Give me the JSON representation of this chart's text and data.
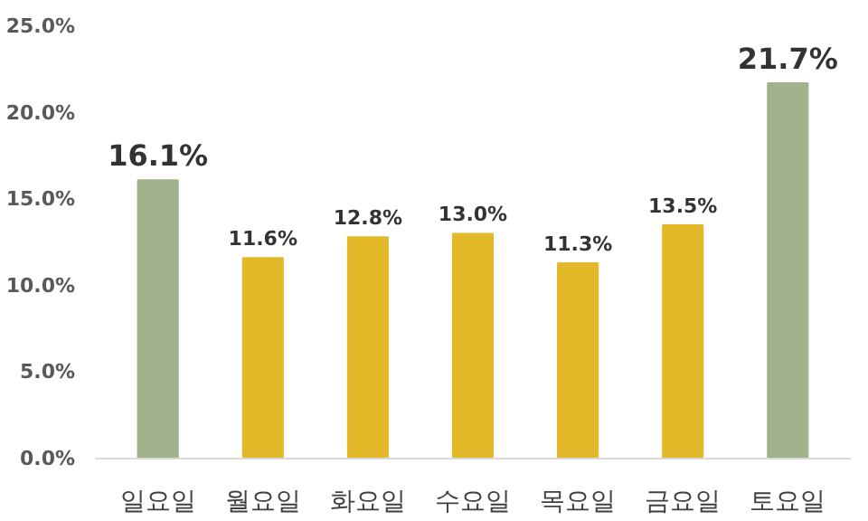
{
  "chart_data": {
    "type": "bar",
    "categories": [
      "일요일",
      "월요일",
      "화요일",
      "수요일",
      "목요일",
      "금요일",
      "토요일"
    ],
    "values": [
      16.1,
      11.6,
      12.8,
      13.0,
      11.3,
      13.5,
      21.7
    ],
    "colors": [
      "#a2b28c",
      "#e3b92a",
      "#e3b92a",
      "#e3b92a",
      "#e3b92a",
      "#e3b92a",
      "#a2b28c"
    ],
    "value_labels": [
      "16.1%",
      "11.6%",
      "12.8%",
      "13.0%",
      "11.3%",
      "13.5%",
      "21.7%"
    ],
    "ylim": [
      0,
      25
    ],
    "yticks": [
      {
        "value": 0,
        "label": "0.0%"
      },
      {
        "value": 5,
        "label": "5.0%"
      },
      {
        "value": 10,
        "label": "10.0%"
      },
      {
        "value": 15,
        "label": "15.0%"
      },
      {
        "value": 20,
        "label": "20.0%"
      },
      {
        "value": 25,
        "label": "25.0%"
      }
    ],
    "grid": false
  }
}
